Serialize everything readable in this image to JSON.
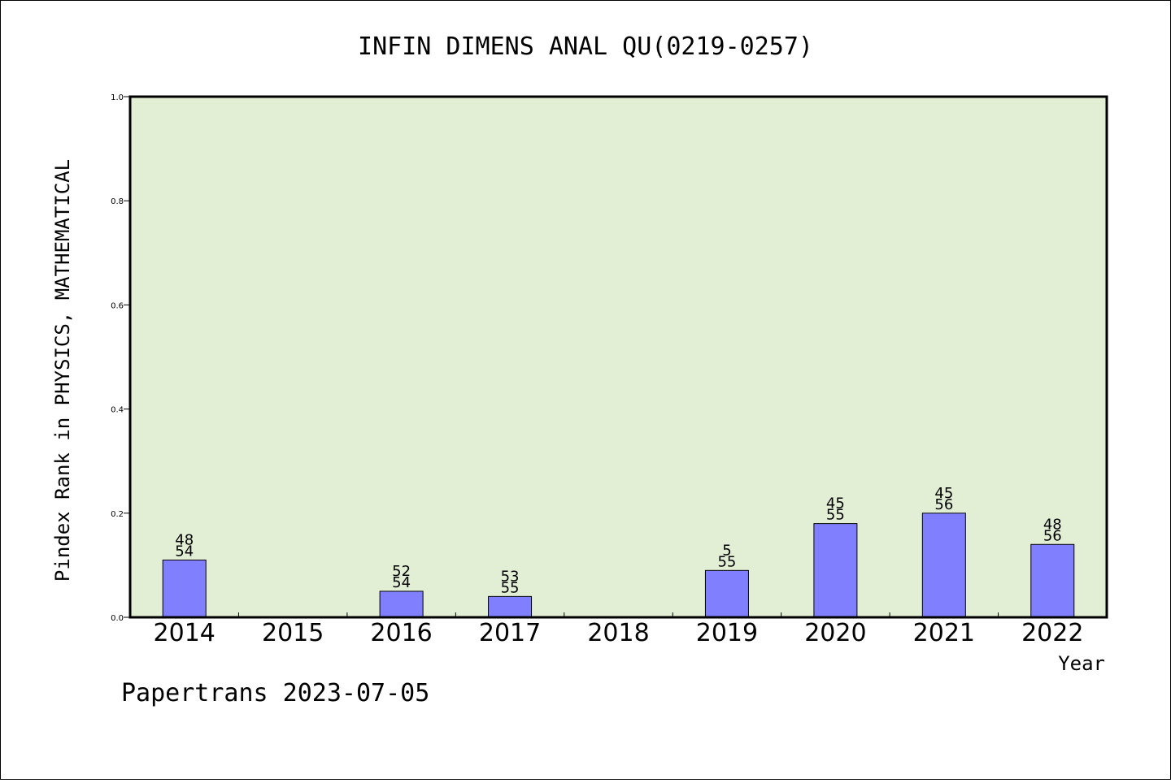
{
  "chart_data": {
    "type": "bar",
    "title": "INFIN DIMENS ANAL QU(0219-0257)",
    "xlabel": "Year",
    "ylabel": "Pindex Rank in PHYSICS, MATHEMATICAL",
    "categories": [
      "2014",
      "2015",
      "2016",
      "2017",
      "2018",
      "2019",
      "2020",
      "2021",
      "2022"
    ],
    "values": [
      0.11,
      null,
      0.05,
      0.04,
      null,
      0.09,
      0.18,
      0.2,
      0.14
    ],
    "rank_labels": [
      "48",
      "",
      "52",
      "53",
      "",
      "5",
      "45",
      "45",
      "48"
    ],
    "total_labels": [
      "54",
      "",
      "54",
      "55",
      "",
      "55",
      "55",
      "56",
      "56"
    ],
    "ylim": [
      0.0,
      1.0
    ],
    "yticks": [
      "0.0",
      "0.2",
      "0.4",
      "0.6",
      "0.8",
      "1.0"
    ],
    "grid": false,
    "colors": {
      "plot_background": "#e2efd5",
      "bar_fill": "#8080ff",
      "bar_stroke": "#000000"
    }
  },
  "footer": "Papertrans 2023-07-05"
}
